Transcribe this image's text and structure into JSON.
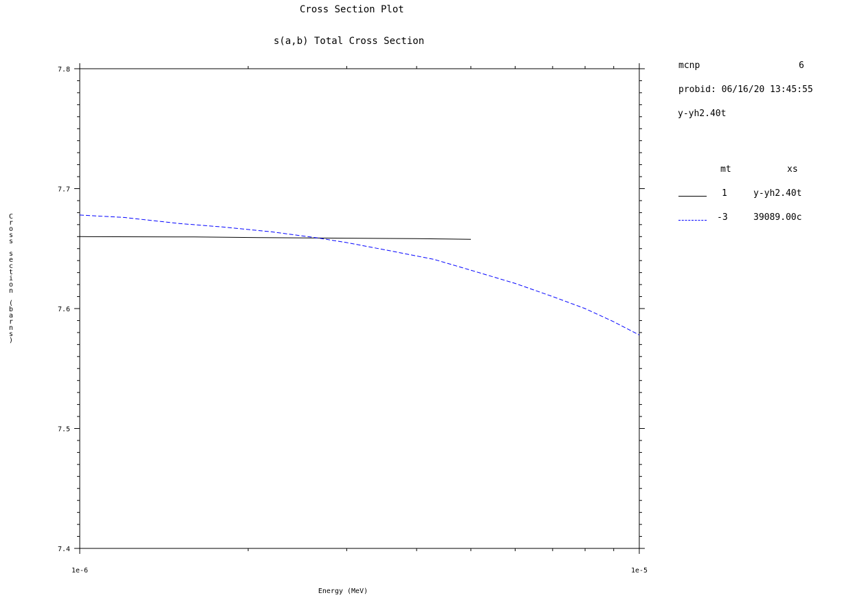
{
  "header": {
    "title": "Cross Section Plot",
    "subtitle": "s(a,b) Total Cross Section"
  },
  "info": {
    "code_label": "mcnp",
    "code_version": "6",
    "probid": "probid: 06/16/20 13:45:55",
    "table_id": "y-yh2.40t"
  },
  "legend": {
    "header_mt": "mt",
    "header_xs": "xs",
    "entries": [
      {
        "mt": "1",
        "xs": "y-yh2.40t",
        "color": "#000000",
        "dash": "solid"
      },
      {
        "mt": "-3",
        "xs": "39089.00c",
        "color": "#0000ff",
        "dash": "dashed"
      }
    ]
  },
  "chart_data": {
    "type": "line",
    "title": "Cross Section Plot",
    "subtitle": "s(a,b) Total Cross Section",
    "xlabel": "Energy (MeV)",
    "ylabel": "Cross section (barns)",
    "xscale": "log",
    "xlim": [
      1e-06,
      1e-05
    ],
    "ylim": [
      7.4,
      7.8
    ],
    "x_tick_labels": [
      "1e-6",
      "1e-5"
    ],
    "y_tick_labels": [
      "7.4",
      "7.5",
      "7.6",
      "7.7",
      "7.8"
    ],
    "grid": false,
    "series": [
      {
        "mt": "1",
        "name": "y-yh2.40t",
        "color": "#000000",
        "dash": "solid",
        "x": [
          1e-06,
          1.6e-06,
          2.1e-06,
          3e-06,
          4e-06,
          4.5e-06,
          5e-06
        ],
        "y": [
          7.66,
          7.6597,
          7.6592,
          7.6587,
          7.6583,
          7.658,
          7.6577
        ]
      },
      {
        "mt": "-3",
        "name": "39089.00c",
        "color": "#0000ff",
        "dash": "dashed",
        "x": [
          1e-06,
          1.2e-06,
          1.5e-06,
          1.8e-06,
          2.2e-06,
          2.65e-06,
          3e-06,
          3.6e-06,
          4.3e-06,
          5e-06,
          6e-06,
          7e-06,
          8e-06,
          9e-06,
          1e-05
        ],
        "y": [
          7.678,
          7.676,
          7.671,
          7.668,
          7.664,
          7.659,
          7.655,
          7.648,
          7.641,
          7.632,
          7.621,
          7.61,
          7.6,
          7.589,
          7.578
        ]
      }
    ]
  }
}
